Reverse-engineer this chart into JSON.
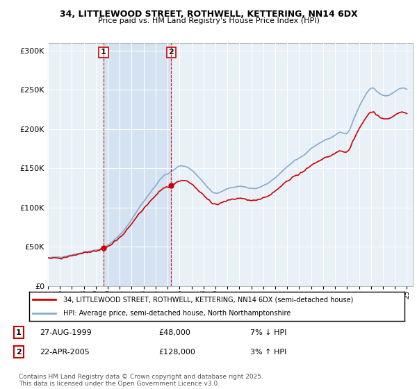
{
  "title": "34, LITTLEWOOD STREET, ROTHWELL, KETTERING, NN14 6DX",
  "subtitle": "Price paid vs. HM Land Registry's House Price Index (HPI)",
  "legend_line1": "34, LITTLEWOOD STREET, ROTHWELL, KETTERING, NN14 6DX (semi-detached house)",
  "legend_line2": "HPI: Average price, semi-detached house, North Northamptonshire",
  "sale1_label": "1",
  "sale1_date": "27-AUG-1999",
  "sale1_price": "£48,000",
  "sale1_hpi": "7% ↓ HPI",
  "sale1_year": 1999.65,
  "sale1_value": 48000,
  "sale2_label": "2",
  "sale2_date": "22-APR-2005",
  "sale2_price": "£128,000",
  "sale2_hpi": "3% ↑ HPI",
  "sale2_year": 2005.3,
  "sale2_value": 128000,
  "footnote": "Contains HM Land Registry data © Crown copyright and database right 2025.\nThis data is licensed under the Open Government Licence v3.0.",
  "line_color_property": "#cc0000",
  "line_color_hpi": "#88aacc",
  "shade_color": "#ddeeff",
  "background_plot": "#e8f0f8",
  "background_fig": "#ffffff",
  "grid_color": "#ffffff",
  "ylim": [
    0,
    310000
  ],
  "yticks": [
    0,
    50000,
    100000,
    150000,
    200000,
    250000,
    300000
  ],
  "xmin": 1995,
  "xmax": 2025.5,
  "hpi_data_years": [
    1995,
    1995.5,
    1996,
    1996.5,
    1997,
    1997.5,
    1998,
    1998.5,
    1999,
    1999.5,
    2000,
    2000.5,
    2001,
    2001.5,
    2002,
    2002.5,
    2003,
    2003.5,
    2004,
    2004.5,
    2005,
    2005.5,
    2006,
    2006.5,
    2007,
    2007.5,
    2008,
    2008.5,
    2009,
    2009.5,
    2010,
    2010.5,
    2011,
    2011.5,
    2012,
    2012.5,
    2013,
    2013.5,
    2014,
    2014.5,
    2015,
    2015.5,
    2016,
    2016.5,
    2017,
    2017.5,
    2018,
    2018.5,
    2019,
    2019.5,
    2020,
    2020.5,
    2021,
    2021.5,
    2022,
    2022.5,
    2023,
    2023.5,
    2024,
    2024.5,
    2025
  ],
  "hpi_values": [
    36000,
    36500,
    37000,
    38000,
    39500,
    41000,
    43000,
    44500,
    46000,
    48000,
    52000,
    58000,
    65000,
    74000,
    85000,
    97000,
    108000,
    118000,
    128000,
    138000,
    143000,
    148000,
    153000,
    152000,
    148000,
    140000,
    132000,
    123000,
    118000,
    120000,
    124000,
    126000,
    127000,
    126000,
    124000,
    125000,
    128000,
    132000,
    138000,
    145000,
    152000,
    158000,
    163000,
    168000,
    175000,
    180000,
    185000,
    188000,
    192000,
    196000,
    195000,
    210000,
    228000,
    242000,
    252000,
    248000,
    243000,
    243000,
    248000,
    252000,
    250000
  ]
}
